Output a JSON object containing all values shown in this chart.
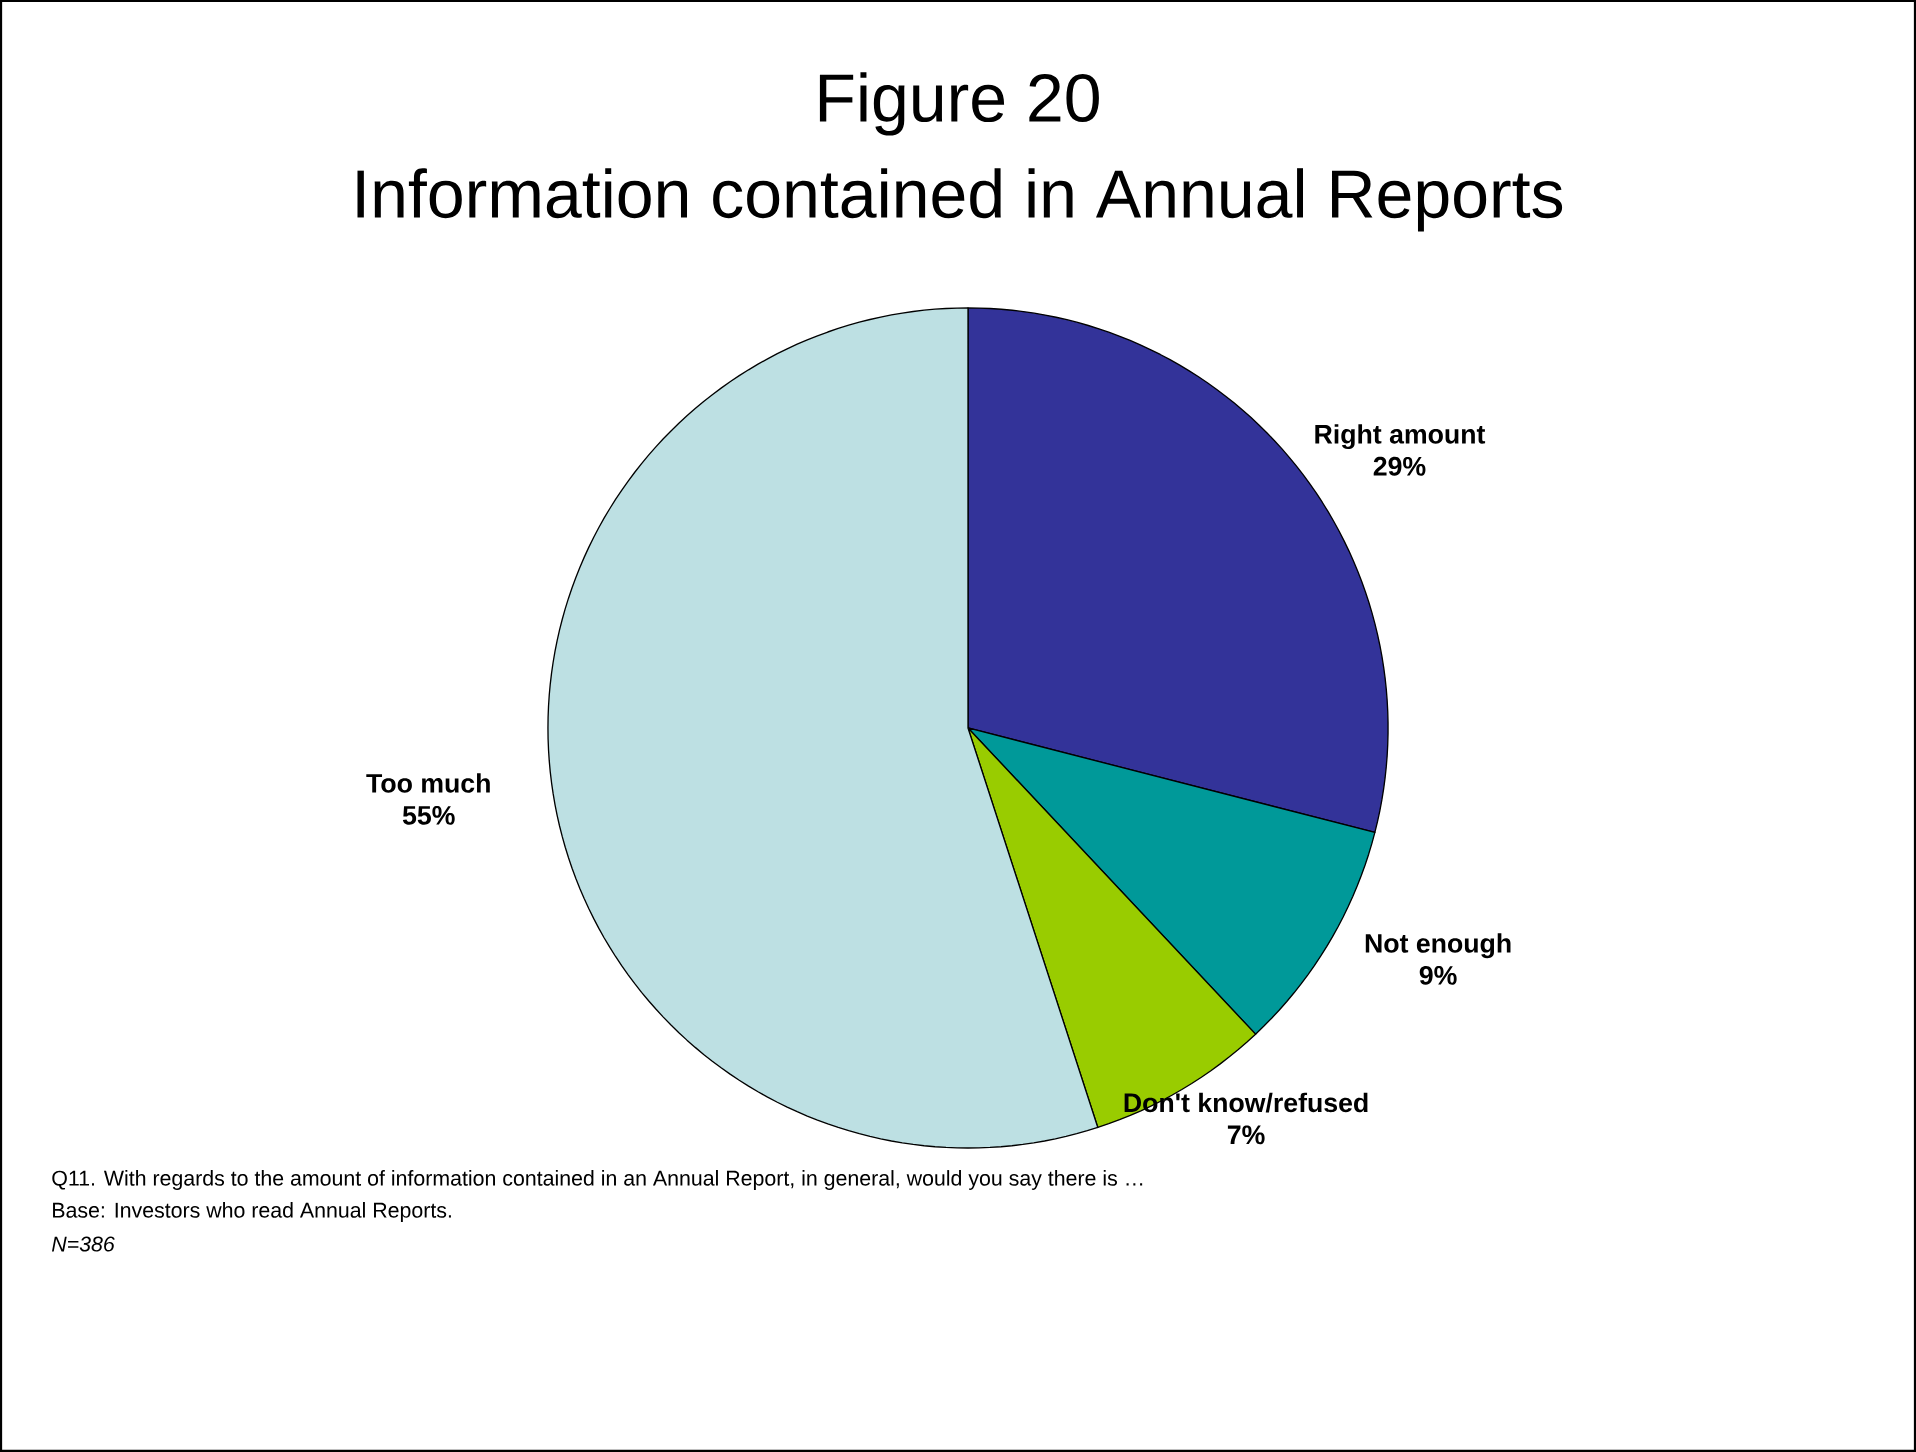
{
  "chart_data": {
    "type": "pie",
    "title": "Figure 20",
    "subtitle": "Information contained in Annual Reports",
    "categories": [
      "Right amount",
      "Not enough",
      "Don't know/refused",
      "Too much"
    ],
    "values": [
      29,
      9,
      7,
      55
    ],
    "value_labels": [
      "29%",
      "9%",
      "7%",
      "55%"
    ],
    "colors": [
      "#333399",
      "#009999",
      "#99cc00",
      "#bde0e3"
    ],
    "data_labels": true,
    "annotations": [
      "Q11. With regards to the amount of information contained in an Annual Report, in general, would you say there is …",
      "Base: Investors who read Annual Reports.",
      "*N=386*"
    ]
  }
}
